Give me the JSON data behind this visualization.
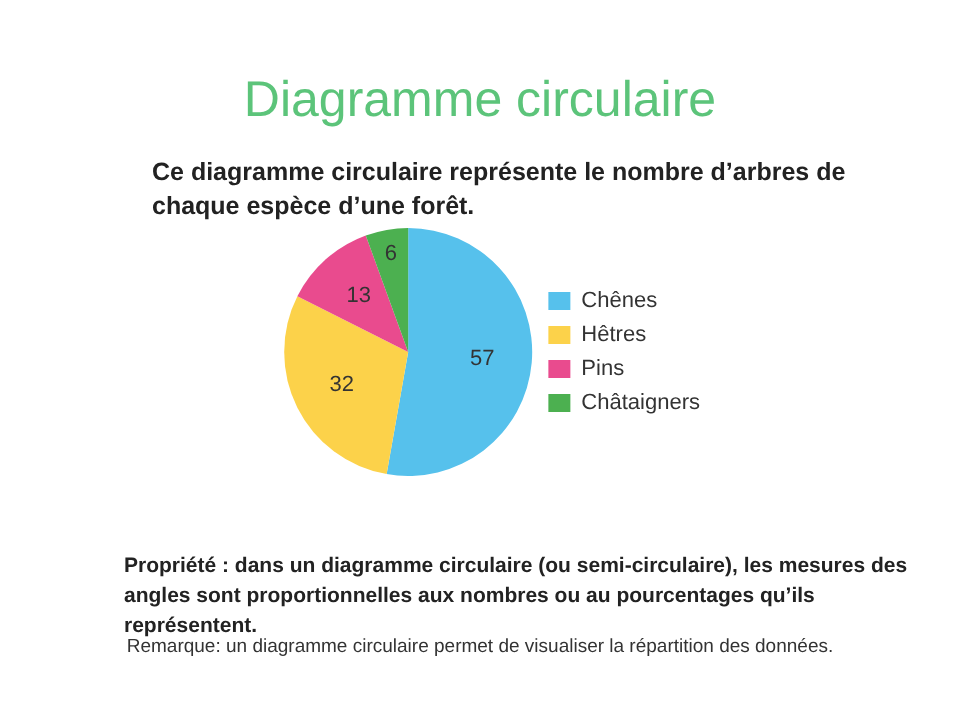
{
  "chart_data": {
    "type": "pie",
    "title": "Diagramme circulaire",
    "subtitle": "Ce diagramme circulaire représente le nombre d’arbres de chaque espèce d’une forêt.",
    "categories": [
      "Chênes",
      "Hêtres",
      "Pins",
      "Châtaigners"
    ],
    "values": [
      57,
      32,
      13,
      6
    ],
    "colors": [
      "#56c1ec",
      "#fcd24a",
      "#e94b8e",
      "#4cb050"
    ],
    "data_labels": true,
    "legend": "right",
    "annotations": [
      "Propriété : dans un diagramme circulaire (ou semi-circulaire), les mesures des angles sont proportionnelles aux nombres ou au pourcentages qu’ils représentent.",
      "Remarque: un diagramme circulaire permet de visualiser la répartition des données."
    ]
  }
}
